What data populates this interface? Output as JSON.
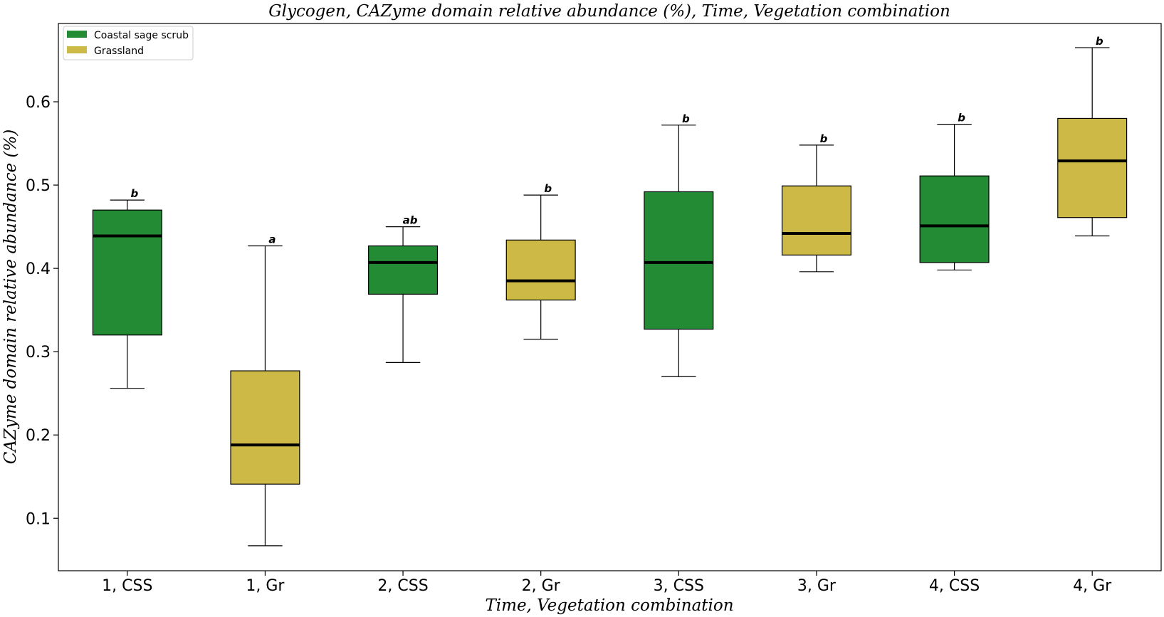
{
  "chart_data": {
    "type": "box",
    "title": "Glycogen, CAZyme domain relative abundance (%), Time, Vegetation combination",
    "xlabel": "Time, Vegetation combination",
    "ylabel": "CAZyme domain relative abundance (%)",
    "ylim": [
      0.037,
      0.694
    ],
    "yticks": [
      0.1,
      0.2,
      0.3,
      0.4,
      0.5,
      0.6
    ],
    "ytick_labels": [
      "0.1",
      "0.2",
      "0.3",
      "0.4",
      "0.5",
      "0.6"
    ],
    "grid": false,
    "legend": {
      "position": "top-left",
      "entries": [
        {
          "label": "Coastal sage scrub",
          "color": "#228b34"
        },
        {
          "label": "Grassland",
          "color": "#cdba46"
        }
      ]
    },
    "colors": {
      "css": "#228b34",
      "gr": "#cdba46",
      "median": "#000000"
    },
    "boxes": [
      {
        "category": "1, CSS",
        "group": "css",
        "whisker_low": 0.256,
        "q1": 0.32,
        "median": 0.439,
        "q3": 0.47,
        "whisker_high": 0.482,
        "sig": "b"
      },
      {
        "category": "1, Gr",
        "group": "gr",
        "whisker_low": 0.067,
        "q1": 0.141,
        "median": 0.188,
        "q3": 0.277,
        "whisker_high": 0.427,
        "sig": "a"
      },
      {
        "category": "2, CSS",
        "group": "css",
        "whisker_low": 0.287,
        "q1": 0.369,
        "median": 0.407,
        "q3": 0.427,
        "whisker_high": 0.45,
        "sig": "ab"
      },
      {
        "category": "2, Gr",
        "group": "gr",
        "whisker_low": 0.315,
        "q1": 0.362,
        "median": 0.385,
        "q3": 0.434,
        "whisker_high": 0.488,
        "sig": "b"
      },
      {
        "category": "3, CSS",
        "group": "css",
        "whisker_low": 0.27,
        "q1": 0.327,
        "median": 0.407,
        "q3": 0.492,
        "whisker_high": 0.572,
        "sig": "b"
      },
      {
        "category": "3, Gr",
        "group": "gr",
        "whisker_low": 0.396,
        "q1": 0.416,
        "median": 0.442,
        "q3": 0.499,
        "whisker_high": 0.548,
        "sig": "b"
      },
      {
        "category": "4, CSS",
        "group": "css",
        "whisker_low": 0.398,
        "q1": 0.407,
        "median": 0.451,
        "q3": 0.511,
        "whisker_high": 0.573,
        "sig": "b"
      },
      {
        "category": "4, Gr",
        "group": "gr",
        "whisker_low": 0.439,
        "q1": 0.461,
        "median": 0.529,
        "q3": 0.58,
        "whisker_high": 0.665,
        "sig": "b"
      }
    ]
  }
}
